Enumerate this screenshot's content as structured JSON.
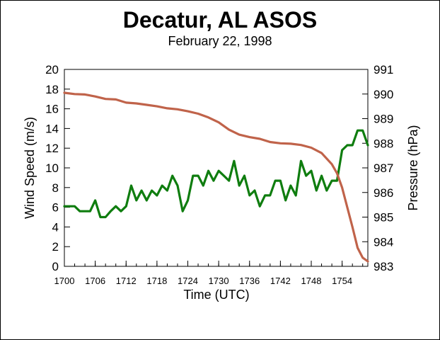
{
  "chart_data": {
    "type": "line",
    "title": "Decatur, AL ASOS",
    "subtitle": "February 22, 1998",
    "xlabel": "Time (UTC)",
    "ylabel_left": "Wind Speed (m/s)",
    "ylabel_right": "Pressure (hPa)",
    "x_ticks": [
      "1700",
      "1706",
      "1712",
      "1718",
      "1724",
      "1730",
      "1736",
      "1742",
      "1748",
      "1754"
    ],
    "y_left_ticks": [
      "0",
      "2",
      "4",
      "6",
      "8",
      "10",
      "12",
      "14",
      "16",
      "18",
      "20"
    ],
    "y_right_ticks": [
      "983",
      "984",
      "985",
      "986",
      "987",
      "988",
      "989",
      "990",
      "991"
    ],
    "x_range_minutes": [
      0,
      59
    ],
    "ylim_left": [
      0,
      20
    ],
    "ylim_right": [
      983,
      991
    ],
    "grid": false,
    "series": [
      {
        "axis": "left",
        "color": "#0f7d0f",
        "x_minutes": [
          0,
          1,
          2,
          3,
          4,
          5,
          6,
          7,
          8,
          9,
          10,
          11,
          12,
          13,
          14,
          15,
          16,
          17,
          18,
          19,
          20,
          21,
          22,
          23,
          24,
          25,
          26,
          27,
          28,
          29,
          30,
          31,
          32,
          33,
          34,
          35,
          36,
          37,
          38,
          39,
          40,
          41,
          42,
          43,
          44,
          45,
          46,
          47,
          48,
          49,
          50,
          51,
          52,
          53,
          54,
          55,
          56,
          57,
          58,
          59
        ],
        "values": [
          6.1,
          6.1,
          6.1,
          5.6,
          5.6,
          5.6,
          6.7,
          5.0,
          5.0,
          5.6,
          6.1,
          5.6,
          6.1,
          8.2,
          6.7,
          7.7,
          6.7,
          7.7,
          7.2,
          8.2,
          7.7,
          9.2,
          8.2,
          5.6,
          6.7,
          9.2,
          9.2,
          8.2,
          9.7,
          8.7,
          9.7,
          9.2,
          8.7,
          10.7,
          8.2,
          9.2,
          7.2,
          7.7,
          6.1,
          7.2,
          7.2,
          8.7,
          8.7,
          6.7,
          8.2,
          7.2,
          10.7,
          9.2,
          9.7,
          7.7,
          9.2,
          7.7,
          8.7,
          8.7,
          11.8,
          12.3,
          12.3,
          13.8,
          13.8,
          12.3
        ]
      },
      {
        "axis": "right",
        "color": "#c0634a",
        "x_minutes": [
          0,
          2,
          4,
          6,
          8,
          10,
          12,
          14,
          16,
          18,
          20,
          22,
          24,
          26,
          28,
          30,
          32,
          34,
          36,
          38,
          40,
          42,
          44,
          46,
          48,
          50,
          52,
          53,
          54,
          55,
          56,
          57,
          58,
          59
        ],
        "values": [
          990.05,
          990.0,
          989.98,
          989.9,
          989.8,
          989.78,
          989.65,
          989.62,
          989.56,
          989.5,
          989.42,
          989.38,
          989.3,
          989.2,
          989.05,
          988.85,
          988.55,
          988.35,
          988.25,
          988.18,
          988.05,
          988.0,
          987.98,
          987.93,
          987.82,
          987.6,
          987.15,
          986.78,
          986.2,
          985.4,
          984.6,
          983.75,
          983.35,
          983.2
        ]
      }
    ]
  }
}
